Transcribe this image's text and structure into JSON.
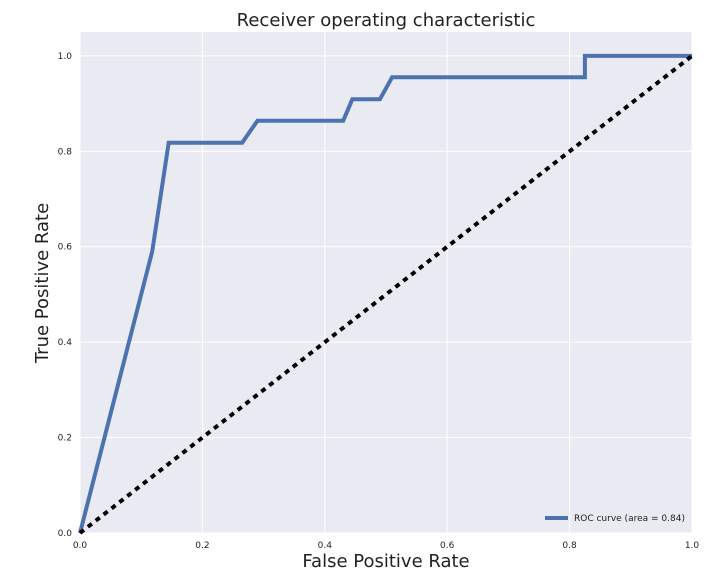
{
  "chart_data": {
    "type": "line",
    "title": "Receiver operating characteristic",
    "xlabel": "False Positive Rate",
    "ylabel": "True Positive Rate",
    "xlim": [
      0.0,
      1.0
    ],
    "ylim": [
      0.0,
      1.05
    ],
    "xticks": [
      "0.0",
      "0.2",
      "0.4",
      "0.6",
      "0.8",
      "1.0"
    ],
    "yticks": [
      "0.0",
      "0.2",
      "0.4",
      "0.6",
      "0.8",
      "1.0"
    ],
    "grid": true,
    "background": "#EAEAF2",
    "legend": {
      "location": "lower-right",
      "entries": [
        "ROC curve (area = 0.84)"
      ]
    },
    "series": [
      {
        "name": "ROC curve (area = 0.84)",
        "color": "#4C72B0",
        "style": "solid",
        "x": [
          0.0,
          0.118,
          0.145,
          0.265,
          0.29,
          0.43,
          0.445,
          0.49,
          0.51,
          0.825,
          0.825,
          1.0
        ],
        "y": [
          0.0,
          0.59,
          0.818,
          0.818,
          0.864,
          0.864,
          0.909,
          0.909,
          0.955,
          0.955,
          1.0,
          1.0
        ]
      },
      {
        "color": "#000000",
        "style": "dashed",
        "x": [
          0.0,
          1.0
        ],
        "y": [
          0.0,
          1.0
        ]
      }
    ]
  }
}
